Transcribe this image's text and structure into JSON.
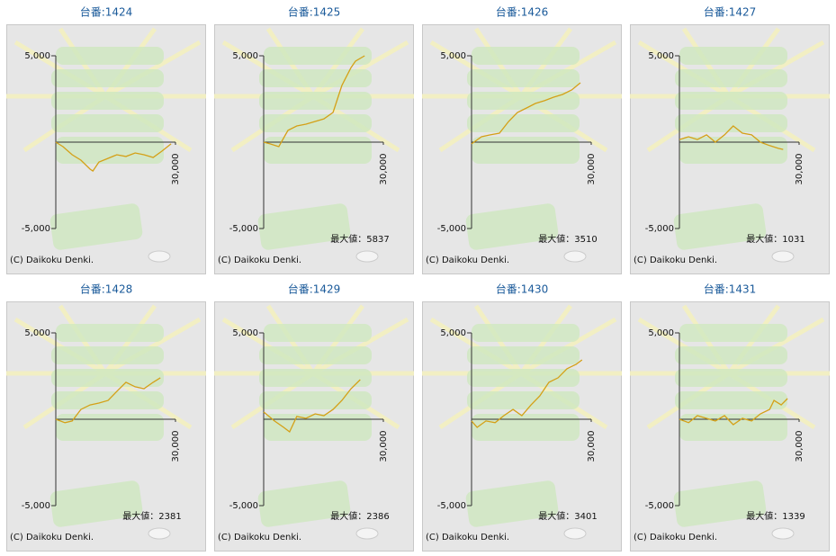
{
  "chart_data": [
    {
      "type": "line",
      "title": "台番:1424",
      "caption": "(C) Daikoku Denki.",
      "color": "#d4a017",
      "x": [
        0,
        1800,
        4100,
        6300,
        8600,
        9300,
        10800,
        13100,
        15300,
        17600,
        19900,
        22100,
        24400,
        26600,
        28900
      ],
      "values": [
        0,
        -260,
        -730,
        -1040,
        -1560,
        -1670,
        -1150,
        -940,
        -730,
        -830,
        -625,
        -730,
        -885,
        -520,
        -100
      ],
      "xlim": [
        0,
        30000
      ],
      "xticks": [
        {
          "value": 30000,
          "label": "30,000"
        }
      ],
      "ylim": [
        -5000,
        5000
      ],
      "yticks": [
        {
          "value": 5000,
          "label": "5,000"
        },
        {
          "value": -5000,
          "label": "-5,000"
        }
      ]
    },
    {
      "type": "line",
      "title": "台番:1425",
      "caption": "(C) Daikoku Denki.",
      "annotation": "最大値：5837",
      "color": "#d4a017",
      "x": [
        0,
        1600,
        3800,
        6100,
        8300,
        10600,
        12900,
        15100,
        17400,
        18500,
        19600,
        21900,
        23000,
        25300
      ],
      "values": [
        0,
        -100,
        -260,
        680,
        940,
        1040,
        1200,
        1350,
        1720,
        2500,
        3280,
        4320,
        4690,
        5000
      ],
      "xlim": [
        0,
        30000
      ],
      "xticks": [
        {
          "value": 30000,
          "label": "30,000"
        }
      ],
      "ylim": [
        -5000,
        5000
      ],
      "yticks": [
        {
          "value": 5000,
          "label": "5,000"
        },
        {
          "value": -5000,
          "label": "-5,000"
        }
      ]
    },
    {
      "type": "line",
      "title": "台番:1426",
      "caption": "(C) Daikoku Denki.",
      "annotation": "最大値：3510",
      "color": "#d4a017",
      "x": [
        0,
        2500,
        4700,
        7000,
        9300,
        11500,
        13800,
        16000,
        18300,
        20500,
        22800,
        25100,
        27300
      ],
      "values": [
        -100,
        310,
        420,
        520,
        1200,
        1720,
        1980,
        2240,
        2400,
        2600,
        2760,
        3020,
        3440
      ],
      "xlim": [
        0,
        30000
      ],
      "xticks": [
        {
          "value": 30000,
          "label": "30,000"
        }
      ],
      "ylim": [
        -5000,
        5000
      ],
      "yticks": [
        {
          "value": 5000,
          "label": "5,000"
        },
        {
          "value": -5000,
          "label": "-5,000"
        }
      ]
    },
    {
      "type": "line",
      "title": "台番:1427",
      "caption": "(C) Daikoku Denki.",
      "annotation": "最大値：1031",
      "color": "#d4a017",
      "x": [
        0,
        2300,
        4500,
        6800,
        9000,
        11300,
        13500,
        15800,
        18100,
        20300,
        22600,
        24800,
        26000
      ],
      "values": [
        150,
        310,
        150,
        420,
        0,
        420,
        940,
        520,
        420,
        0,
        -200,
        -360,
        -420
      ],
      "xlim": [
        0,
        30000
      ],
      "xticks": [
        {
          "value": 30000,
          "label": "30,000"
        }
      ],
      "ylim": [
        -5000,
        5000
      ],
      "yticks": [
        {
          "value": 5000,
          "label": "5,000"
        },
        {
          "value": -5000,
          "label": "-5,000"
        }
      ]
    },
    {
      "type": "line",
      "title": "台番:1428",
      "caption": "(C) Daikoku Denki.",
      "annotation": "最大値：2381",
      "color": "#d4a017",
      "x": [
        0,
        2300,
        4100,
        6300,
        8600,
        10800,
        13100,
        15300,
        17600,
        19900,
        22100,
        24400,
        26200
      ],
      "values": [
        0,
        -200,
        -100,
        570,
        830,
        940,
        1090,
        1610,
        2140,
        1880,
        1770,
        2140,
        2400
      ],
      "xlim": [
        0,
        30000
      ],
      "xticks": [
        {
          "value": 30000,
          "label": "30,000"
        }
      ],
      "ylim": [
        -5000,
        5000
      ],
      "yticks": [
        {
          "value": 5000,
          "label": "5,000"
        },
        {
          "value": -5000,
          "label": "-5,000"
        }
      ]
    },
    {
      "type": "line",
      "title": "台番:1429",
      "caption": "(C) Daikoku Denki.",
      "annotation": "最大値：2386",
      "color": "#d4a017",
      "x": [
        0,
        2700,
        5000,
        6500,
        8300,
        10600,
        12900,
        15100,
        17400,
        19600,
        21900,
        24200
      ],
      "values": [
        420,
        -100,
        -470,
        -730,
        160,
        50,
        310,
        210,
        570,
        1090,
        1770,
        2290
      ],
      "xlim": [
        0,
        30000
      ],
      "xticks": [
        {
          "value": 30000,
          "label": "30,000"
        }
      ],
      "ylim": [
        -5000,
        5000
      ],
      "yticks": [
        {
          "value": 5000,
          "label": "5,000"
        },
        {
          "value": -5000,
          "label": "-5,000"
        }
      ]
    },
    {
      "type": "line",
      "title": "台番:1430",
      "caption": "(C) Daikoku Denki.",
      "annotation": "最大値：3401",
      "color": "#d4a017",
      "x": [
        0,
        1400,
        3600,
        5900,
        8100,
        10400,
        12600,
        14900,
        17100,
        19400,
        21700,
        23900,
        26200,
        27700
      ],
      "values": [
        -100,
        -470,
        -100,
        -200,
        210,
        570,
        210,
        830,
        1350,
        2140,
        2400,
        2920,
        3180,
        3440
      ],
      "xlim": [
        0,
        30000
      ],
      "xticks": [
        {
          "value": 30000,
          "label": "30,000"
        }
      ],
      "ylim": [
        -5000,
        5000
      ],
      "yticks": [
        {
          "value": 5000,
          "label": "5,000"
        },
        {
          "value": -5000,
          "label": "-5,000"
        }
      ]
    },
    {
      "type": "line",
      "title": "台番:1431",
      "caption": "(C) Daikoku Denki.",
      "annotation": "最大値：1339",
      "color": "#d4a017",
      "x": [
        0,
        2300,
        4500,
        6800,
        9000,
        11300,
        13500,
        15800,
        18100,
        20300,
        22600,
        23700,
        25500,
        27100
      ],
      "values": [
        0,
        -200,
        210,
        50,
        -100,
        210,
        -310,
        50,
        -100,
        310,
        570,
        1090,
        830,
        1200
      ],
      "xlim": [
        0,
        30000
      ],
      "xticks": [
        {
          "value": 30000,
          "label": "30,000"
        }
      ],
      "ylim": [
        -5000,
        5000
      ],
      "yticks": [
        {
          "value": 5000,
          "label": "5,000"
        },
        {
          "value": -5000,
          "label": "-5,000"
        }
      ]
    }
  ]
}
